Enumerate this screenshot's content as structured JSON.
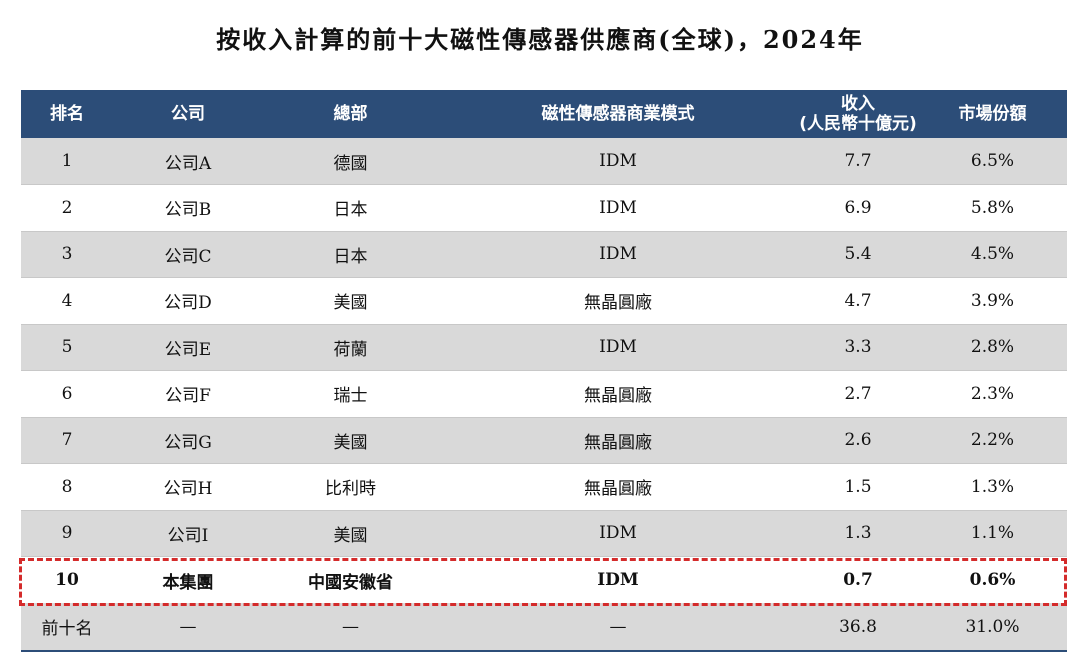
{
  "title": "按收入計算的前十大磁性傳感器供應商(全球)，2024年",
  "headers": {
    "rank": "排名",
    "company": "公司",
    "hq": "總部",
    "model": "磁性傳感器商業模式",
    "revenue_line1": "收入",
    "revenue_line2": "(人民幣十億元)",
    "share": "市場份額"
  },
  "rows": [
    {
      "rank": "1",
      "company": "公司A",
      "hq": "德國",
      "model": "IDM",
      "revenue": "7.7",
      "share": "6.5%"
    },
    {
      "rank": "2",
      "company": "公司B",
      "hq": "日本",
      "model": "IDM",
      "revenue": "6.9",
      "share": "5.8%"
    },
    {
      "rank": "3",
      "company": "公司C",
      "hq": "日本",
      "model": "IDM",
      "revenue": "5.4",
      "share": "4.5%"
    },
    {
      "rank": "4",
      "company": "公司D",
      "hq": "美國",
      "model": "無晶圓廠",
      "revenue": "4.7",
      "share": "3.9%"
    },
    {
      "rank": "5",
      "company": "公司E",
      "hq": "荷蘭",
      "model": "IDM",
      "revenue": "3.3",
      "share": "2.8%"
    },
    {
      "rank": "6",
      "company": "公司F",
      "hq": "瑞士",
      "model": "無晶圓廠",
      "revenue": "2.7",
      "share": "2.3%"
    },
    {
      "rank": "7",
      "company": "公司G",
      "hq": "美國",
      "model": "無晶圓廠",
      "revenue": "2.6",
      "share": "2.2%"
    },
    {
      "rank": "8",
      "company": "公司H",
      "hq": "比利時",
      "model": "無晶圓廠",
      "revenue": "1.5",
      "share": "1.3%"
    },
    {
      "rank": "9",
      "company": "公司I",
      "hq": "美國",
      "model": "IDM",
      "revenue": "1.3",
      "share": "1.1%"
    },
    {
      "rank": "10",
      "company": "本集團",
      "hq": "中國安徽省",
      "model": "IDM",
      "revenue": "0.7",
      "share": "0.6%"
    }
  ],
  "total": {
    "label": "前十名",
    "company": "—",
    "hq": "—",
    "model": "—",
    "revenue": "36.8",
    "share": "31.0%"
  },
  "colors": {
    "header_bg": "#2c4d78",
    "shade_row": "#d9d9d9",
    "highlight_border": "#d42b2b"
  }
}
